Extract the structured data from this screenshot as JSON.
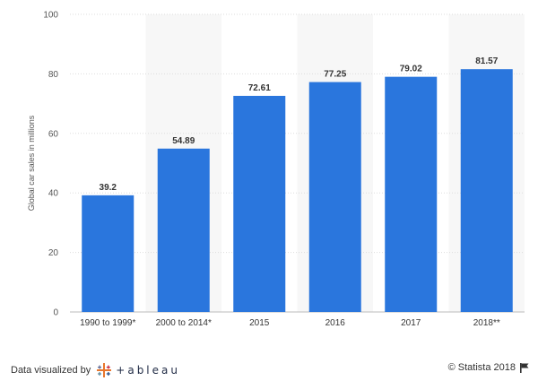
{
  "chart_data": {
    "type": "bar",
    "categories": [
      "1990 to 1999*",
      "2000 to 2014*",
      "2015",
      "2016",
      "2017",
      "2018**"
    ],
    "values": [
      39.2,
      54.89,
      72.61,
      77.25,
      79.02,
      81.57
    ],
    "value_labels": [
      "39.2",
      "54.89",
      "72.61",
      "77.25",
      "79.02",
      "81.57"
    ],
    "title": "",
    "xlabel": "",
    "ylabel": "Global car sales in millions",
    "ylim": [
      0,
      100
    ],
    "yticks": [
      0,
      20,
      40,
      60,
      80,
      100
    ],
    "grid": true,
    "bar_color": "#2a76dd",
    "alt_band_color": "#f7f7f7"
  },
  "footer": {
    "credit_text": "Data visualized by",
    "tableau_brand": "+ableau",
    "copyright": "© Statista 2018",
    "flag_icon": "flag-icon"
  }
}
